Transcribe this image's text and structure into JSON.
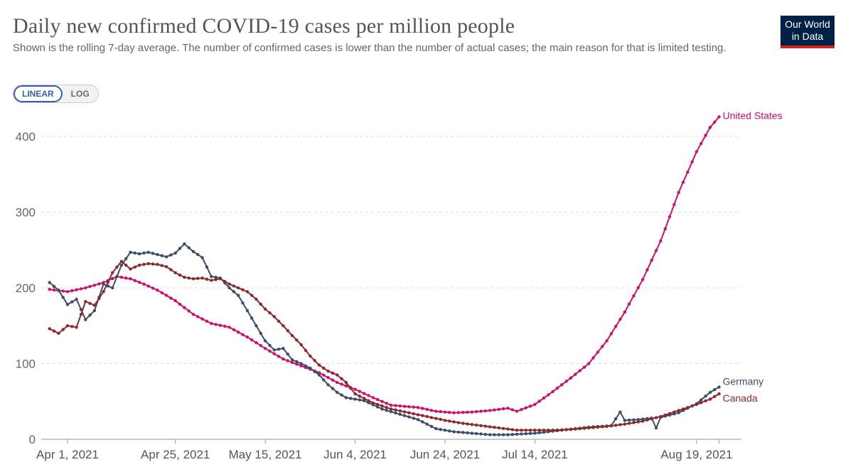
{
  "title": "Daily new confirmed COVID-19 cases per million people",
  "subtitle": "Shown is the rolling 7-day average. The number of confirmed cases is lower than the number of actual cases; the main reason for that is limited testing.",
  "logo": {
    "line1": "Our World",
    "line2": "in Data"
  },
  "scale_toggle": {
    "linear": "LINEAR",
    "log": "LOG",
    "selected": "LINEAR"
  },
  "chart_data": {
    "type": "line",
    "title": "Daily new confirmed COVID-19 cases per million people",
    "xlabel": "",
    "ylabel": "",
    "scale": "linear",
    "ylim": [
      0,
      420
    ],
    "y_ticks": [
      0,
      100,
      200,
      300,
      400
    ],
    "x_ticks": [
      {
        "date": "2021-04-01",
        "label": "Apr 1, 2021"
      },
      {
        "date": "2021-04-25",
        "label": "Apr 25, 2021"
      },
      {
        "date": "2021-05-15",
        "label": "May 15, 2021"
      },
      {
        "date": "2021-06-04",
        "label": "Jun 4, 2021"
      },
      {
        "date": "2021-06-24",
        "label": "Jun 24, 2021"
      },
      {
        "date": "2021-07-14",
        "label": "Jul 14, 2021"
      },
      {
        "date": "2021-08-19",
        "label": "Aug 19, 2021"
      }
    ],
    "x_range": [
      "2021-03-28",
      "2021-08-24"
    ],
    "grid": "horizontal dashed",
    "legend": "inline labels at line ends (right)",
    "series": [
      {
        "name": "United States",
        "color": "#c9126b",
        "points": [
          [
            "2021-03-28",
            198
          ],
          [
            "2021-04-01",
            195
          ],
          [
            "2021-04-05",
            200
          ],
          [
            "2021-04-09",
            207
          ],
          [
            "2021-04-12",
            215
          ],
          [
            "2021-04-15",
            212
          ],
          [
            "2021-04-18",
            205
          ],
          [
            "2021-04-21",
            197
          ],
          [
            "2021-04-25",
            183
          ],
          [
            "2021-04-29",
            165
          ],
          [
            "2021-05-03",
            153
          ],
          [
            "2021-05-07",
            148
          ],
          [
            "2021-05-11",
            135
          ],
          [
            "2021-05-15",
            120
          ],
          [
            "2021-05-19",
            106
          ],
          [
            "2021-05-23",
            97
          ],
          [
            "2021-05-27",
            88
          ],
          [
            "2021-05-31",
            75
          ],
          [
            "2021-06-04",
            66
          ],
          [
            "2021-06-08",
            55
          ],
          [
            "2021-06-12",
            45
          ],
          [
            "2021-06-14",
            44
          ],
          [
            "2021-06-18",
            42
          ],
          [
            "2021-06-22",
            37
          ],
          [
            "2021-06-26",
            35
          ],
          [
            "2021-06-30",
            36
          ],
          [
            "2021-07-04",
            38
          ],
          [
            "2021-07-08",
            41
          ],
          [
            "2021-07-10",
            37
          ],
          [
            "2021-07-14",
            46
          ],
          [
            "2021-07-18",
            63
          ],
          [
            "2021-07-22",
            81
          ],
          [
            "2021-07-26",
            100
          ],
          [
            "2021-07-30",
            130
          ],
          [
            "2021-08-03",
            168
          ],
          [
            "2021-08-07",
            211
          ],
          [
            "2021-08-11",
            262
          ],
          [
            "2021-08-15",
            326
          ],
          [
            "2021-08-19",
            380
          ],
          [
            "2021-08-22",
            412
          ],
          [
            "2021-08-24",
            426
          ]
        ]
      },
      {
        "name": "Germany",
        "color": "#3c4e66",
        "points": [
          [
            "2021-03-28",
            207
          ],
          [
            "2021-03-30",
            197
          ],
          [
            "2021-04-01",
            178
          ],
          [
            "2021-04-03",
            185
          ],
          [
            "2021-04-05",
            158
          ],
          [
            "2021-04-07",
            170
          ],
          [
            "2021-04-09",
            205
          ],
          [
            "2021-04-11",
            200
          ],
          [
            "2021-04-13",
            230
          ],
          [
            "2021-04-15",
            247
          ],
          [
            "2021-04-17",
            245
          ],
          [
            "2021-04-19",
            247
          ],
          [
            "2021-04-21",
            244
          ],
          [
            "2021-04-23",
            241
          ],
          [
            "2021-04-25",
            246
          ],
          [
            "2021-04-27",
            258
          ],
          [
            "2021-04-29",
            248
          ],
          [
            "2021-05-01",
            240
          ],
          [
            "2021-05-03",
            215
          ],
          [
            "2021-05-05",
            213
          ],
          [
            "2021-05-07",
            200
          ],
          [
            "2021-05-09",
            190
          ],
          [
            "2021-05-11",
            170
          ],
          [
            "2021-05-13",
            150
          ],
          [
            "2021-05-15",
            130
          ],
          [
            "2021-05-17",
            118
          ],
          [
            "2021-05-19",
            120
          ],
          [
            "2021-05-21",
            105
          ],
          [
            "2021-05-23",
            100
          ],
          [
            "2021-05-25",
            94
          ],
          [
            "2021-05-27",
            85
          ],
          [
            "2021-05-29",
            72
          ],
          [
            "2021-05-31",
            62
          ],
          [
            "2021-06-02",
            55
          ],
          [
            "2021-06-04",
            53
          ],
          [
            "2021-06-06",
            51
          ],
          [
            "2021-06-10",
            40
          ],
          [
            "2021-06-14",
            33
          ],
          [
            "2021-06-18",
            26
          ],
          [
            "2021-06-22",
            14
          ],
          [
            "2021-06-26",
            10
          ],
          [
            "2021-06-30",
            8
          ],
          [
            "2021-07-04",
            6
          ],
          [
            "2021-07-08",
            6
          ],
          [
            "2021-07-14",
            8
          ],
          [
            "2021-07-20",
            12
          ],
          [
            "2021-07-26",
            16
          ],
          [
            "2021-07-31",
            18
          ],
          [
            "2021-08-02",
            36
          ],
          [
            "2021-08-03",
            25
          ],
          [
            "2021-08-06",
            26
          ],
          [
            "2021-08-09",
            28
          ],
          [
            "2021-08-10",
            15
          ],
          [
            "2021-08-11",
            29
          ],
          [
            "2021-08-15",
            35
          ],
          [
            "2021-08-19",
            47
          ],
          [
            "2021-08-22",
            62
          ],
          [
            "2021-08-24",
            69
          ]
        ]
      },
      {
        "name": "Canada",
        "color": "#8b2a2e",
        "points": [
          [
            "2021-03-28",
            146
          ],
          [
            "2021-03-30",
            140
          ],
          [
            "2021-04-01",
            150
          ],
          [
            "2021-04-03",
            148
          ],
          [
            "2021-04-05",
            182
          ],
          [
            "2021-04-07",
            177
          ],
          [
            "2021-04-09",
            195
          ],
          [
            "2021-04-11",
            220
          ],
          [
            "2021-04-13",
            235
          ],
          [
            "2021-04-15",
            225
          ],
          [
            "2021-04-17",
            230
          ],
          [
            "2021-04-19",
            232
          ],
          [
            "2021-04-21",
            231
          ],
          [
            "2021-04-23",
            228
          ],
          [
            "2021-04-25",
            220
          ],
          [
            "2021-04-27",
            214
          ],
          [
            "2021-04-29",
            212
          ],
          [
            "2021-05-01",
            213
          ],
          [
            "2021-05-03",
            210
          ],
          [
            "2021-05-05",
            212
          ],
          [
            "2021-05-07",
            205
          ],
          [
            "2021-05-09",
            200
          ],
          [
            "2021-05-11",
            195
          ],
          [
            "2021-05-13",
            185
          ],
          [
            "2021-05-15",
            172
          ],
          [
            "2021-05-17",
            162
          ],
          [
            "2021-05-19",
            150
          ],
          [
            "2021-05-21",
            137
          ],
          [
            "2021-05-23",
            125
          ],
          [
            "2021-05-25",
            110
          ],
          [
            "2021-05-27",
            98
          ],
          [
            "2021-05-29",
            90
          ],
          [
            "2021-05-31",
            85
          ],
          [
            "2021-06-02",
            75
          ],
          [
            "2021-06-04",
            60
          ],
          [
            "2021-06-08",
            48
          ],
          [
            "2021-06-12",
            40
          ],
          [
            "2021-06-16",
            35
          ],
          [
            "2021-06-20",
            30
          ],
          [
            "2021-06-24",
            25
          ],
          [
            "2021-06-28",
            21
          ],
          [
            "2021-07-02",
            18
          ],
          [
            "2021-07-06",
            15
          ],
          [
            "2021-07-10",
            12
          ],
          [
            "2021-07-14",
            12
          ],
          [
            "2021-07-18",
            12
          ],
          [
            "2021-07-22",
            13
          ],
          [
            "2021-07-26",
            15
          ],
          [
            "2021-07-30",
            17
          ],
          [
            "2021-08-03",
            20
          ],
          [
            "2021-08-07",
            24
          ],
          [
            "2021-08-11",
            30
          ],
          [
            "2021-08-15",
            38
          ],
          [
            "2021-08-19",
            46
          ],
          [
            "2021-08-22",
            53
          ],
          [
            "2021-08-24",
            60
          ]
        ]
      }
    ]
  }
}
